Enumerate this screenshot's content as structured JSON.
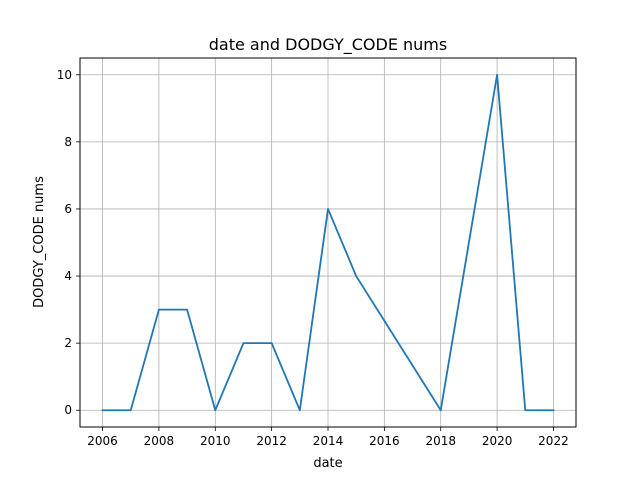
{
  "chart_data": {
    "type": "line",
    "title": "date and DODGY_CODE nums",
    "xlabel": "date",
    "ylabel": "DODGY_CODE nums",
    "xlim": [
      2005.2,
      2022.8
    ],
    "ylim": [
      -0.5,
      10.5
    ],
    "xticks": [
      2006,
      2008,
      2010,
      2012,
      2014,
      2016,
      2018,
      2020,
      2022
    ],
    "yticks": [
      0,
      2,
      4,
      6,
      8,
      10
    ],
    "grid": true,
    "series": [
      {
        "color": "#1f77b4",
        "x": [
          2006,
          2007,
          2008,
          2009,
          2010,
          2011,
          2012,
          2013,
          2014,
          2015,
          2018,
          2020,
          2021,
          2022
        ],
        "y": [
          0,
          0,
          3,
          3,
          0,
          2,
          2,
          0,
          6,
          4,
          0,
          10,
          0,
          0
        ]
      }
    ]
  }
}
